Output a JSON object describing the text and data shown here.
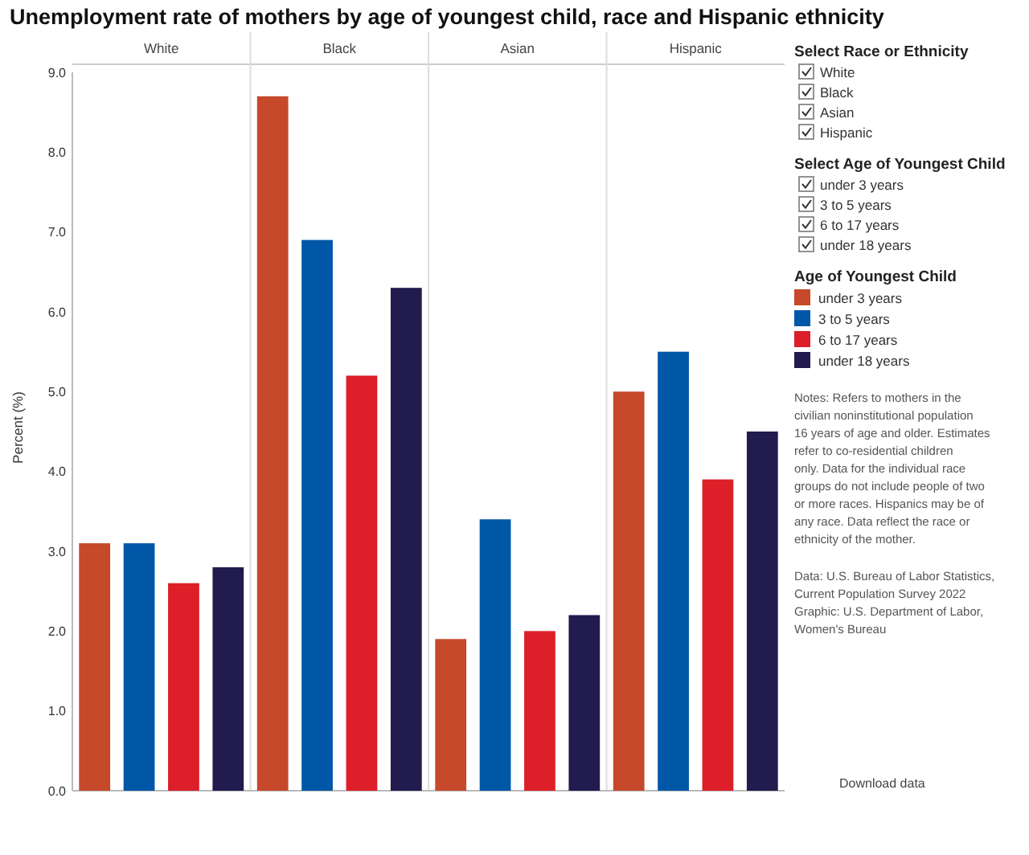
{
  "chart_data": {
    "type": "bar",
    "title": "Unemployment rate of mothers by age of youngest child, race and Hispanic ethnicity",
    "ylabel": "Percent (%)",
    "legend_title": "Age of Youngest Child",
    "categories": [
      "White",
      "Black",
      "Asian",
      "Hispanic"
    ],
    "series": [
      {
        "name": "under 3 years",
        "color": "#c5492a",
        "values": [
          3.1,
          8.7,
          1.9,
          5.0
        ]
      },
      {
        "name": "3 to 5 years",
        "color": "#0057a8",
        "values": [
          3.1,
          6.9,
          3.4,
          5.5
        ]
      },
      {
        "name": "6 to 17 years",
        "color": "#dc1f29",
        "values": [
          2.6,
          5.2,
          2.0,
          3.9
        ]
      },
      {
        "name": "under 18 years",
        "color": "#211b4e",
        "values": [
          2.8,
          6.3,
          2.2,
          4.5
        ]
      }
    ],
    "ylim": [
      0,
      9
    ],
    "yticks": [
      {
        "value": 0,
        "label": "0.0"
      },
      {
        "value": 1,
        "label": "1.0"
      },
      {
        "value": 2,
        "label": "2.0"
      },
      {
        "value": 3,
        "label": "3.0"
      },
      {
        "value": 4,
        "label": "4.0"
      },
      {
        "value": 5,
        "label": "5.0"
      },
      {
        "value": 6,
        "label": "6.0"
      },
      {
        "value": 7,
        "label": "7.0"
      },
      {
        "value": 8,
        "label": "8.0"
      },
      {
        "value": 9,
        "label": "9.0"
      }
    ],
    "grid": false,
    "legend": "right",
    "annotations": [
      "Select Race or Ethnicity",
      "Select Age of Youngest Child",
      "Notes: Refers to mothers in the civilian noninstitutional population 16 years of age and older. Estimates refer to co-residential children only. Data for the individual race groups do not include people of two or more races. Hispanics may be of any race. Data reflect the race or ethnicity of the mother.",
      "Data: U.S. Bureau of Labor Statistics, Current Population Survey 2022",
      "Graphic: U.S. Department of Labor, Women's Bureau",
      "Download data"
    ]
  }
}
